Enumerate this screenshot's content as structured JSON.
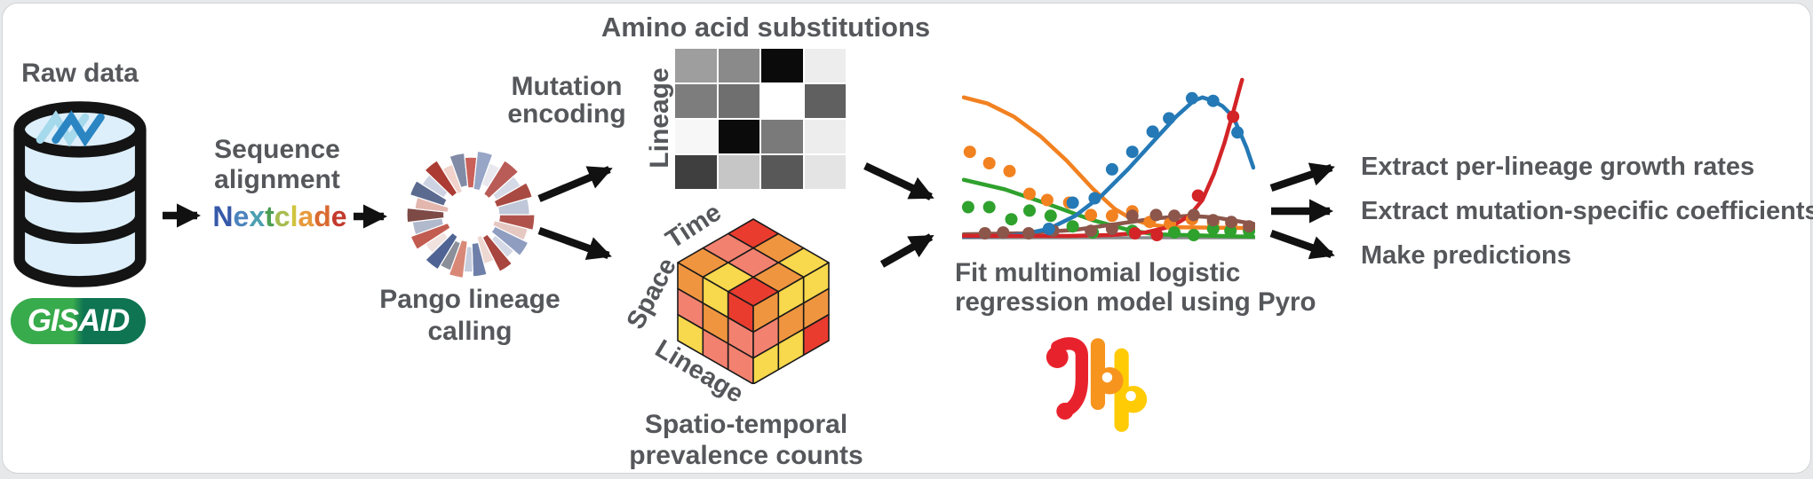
{
  "canvas": {
    "page_bg": "#e7e8e9",
    "card_bg": "#ffffff",
    "card_border": "#d2d3d5",
    "text_color": "#55575b",
    "arrow_color": "#111111"
  },
  "nodes": {
    "raw_data": {
      "label": "Raw data",
      "database_fill": "#ddeffb",
      "database_stroke": "#141414",
      "dna_colors": [
        "#a5d9ec",
        "#2b85c2"
      ],
      "gisaid": {
        "text": "GISAID",
        "gradient_left": "#38ab4c",
        "gradient_right": "#0e7452"
      }
    },
    "sequence_alignment": {
      "line1": "Sequence",
      "line2": "alignment",
      "tool_letters": [
        [
          "N",
          "#3659A8"
        ],
        [
          "e",
          "#4C83BC"
        ],
        [
          "x",
          "#4D9FB0"
        ],
        [
          "t",
          "#4C9E52"
        ],
        [
          "c",
          "#A6BC4F"
        ],
        [
          "l",
          "#D1C43F"
        ],
        [
          "a",
          "#E79A3C"
        ],
        [
          "d",
          "#D96A30"
        ],
        [
          "e",
          "#C23A2C"
        ]
      ]
    },
    "pango": {
      "line1": "Pango lineage",
      "line2": "calling",
      "wedges": [
        [
          0,
          14,
          0.45,
          1,
          "#b0524c"
        ],
        [
          14,
          26,
          0.38,
          0.92,
          "#e6c8c2"
        ],
        [
          26,
          40,
          0.42,
          1,
          "#8e9dc0"
        ],
        [
          40,
          50,
          0.5,
          0.88,
          "#d5d9e6"
        ],
        [
          50,
          63,
          0.4,
          1,
          "#a8453e"
        ],
        [
          63,
          75,
          0.36,
          0.8,
          "#eed8d2"
        ],
        [
          75,
          88,
          0.45,
          0.97,
          "#6e80a9"
        ],
        [
          88,
          97,
          0.5,
          0.9,
          "#c6cddd"
        ],
        [
          97,
          110,
          0.42,
          1,
          "#d98877"
        ],
        [
          110,
          121,
          0.47,
          0.93,
          "#8a8f99"
        ],
        [
          121,
          135,
          0.4,
          1,
          "#4f6494"
        ],
        [
          135,
          147,
          0.5,
          0.85,
          "#efe2df"
        ],
        [
          147,
          160,
          0.38,
          1,
          "#c25c51"
        ],
        [
          160,
          173,
          0.45,
          0.92,
          "#b1b9cc"
        ],
        [
          173,
          186,
          0.42,
          1,
          "#7d4a46"
        ],
        [
          186,
          198,
          0.36,
          0.88,
          "#e3b7ae"
        ],
        [
          198,
          212,
          0.44,
          1,
          "#5b6b90"
        ],
        [
          212,
          224,
          0.5,
          0.9,
          "#cdd3e2"
        ],
        [
          224,
          238,
          0.4,
          1,
          "#ab3b33"
        ],
        [
          238,
          250,
          0.38,
          0.84,
          "#f1d3cc"
        ],
        [
          250,
          264,
          0.45,
          0.97,
          "#828ba6"
        ],
        [
          264,
          276,
          0.42,
          0.9,
          "#c9615a"
        ],
        [
          276,
          290,
          0.4,
          1,
          "#97a5c6"
        ],
        [
          290,
          302,
          0.5,
          0.86,
          "#e8e8ee"
        ],
        [
          302,
          318,
          0.38,
          1,
          "#b95b56"
        ],
        [
          318,
          330,
          0.46,
          0.9,
          "#d6dae6"
        ],
        [
          330,
          344,
          0.42,
          1,
          "#a94a42"
        ],
        [
          344,
          360,
          0.44,
          0.92,
          "#bfc7d8"
        ]
      ]
    },
    "mutation_encoding": {
      "line1": "Mutation",
      "line2": "encoding"
    },
    "amino_matrix": {
      "title": "Amino acid substitutions",
      "axis_label": "Lineage",
      "cells": [
        [
          "#9e9e9e",
          "#8a8a8a",
          "#0b0b0b",
          "#ededed"
        ],
        [
          "#7d7d7d",
          "#6f6f6f",
          "#ffffff",
          "#606060"
        ],
        [
          "#f7f7f7",
          "#0b0b0b",
          "#7a7a7a",
          "#ededed"
        ],
        [
          "#3f3f3f",
          "#c6c6c6",
          "#585858",
          "#e4e4e4"
        ]
      ]
    },
    "cube": {
      "caption1": "Spatio-temporal",
      "caption2": "prevalence counts",
      "axis_time": "Time",
      "axis_space": "Space",
      "axis_lineage": "Lineage",
      "palette": {
        "Y": "#F8D84C",
        "O": "#F0953F",
        "S": "#F3816F",
        "R": "#E93C2F"
      },
      "faces": {
        "top": [
          [
            "R",
            "O",
            "Y"
          ],
          [
            "S",
            "S",
            "O"
          ],
          [
            "O",
            "Y",
            "R"
          ]
        ],
        "left": [
          [
            "O",
            "Y",
            "R"
          ],
          [
            "S",
            "O",
            "S"
          ],
          [
            "Y",
            "S",
            "S"
          ]
        ],
        "right": [
          [
            "O",
            "Y",
            "Y"
          ],
          [
            "S",
            "O",
            "O"
          ],
          [
            "Y",
            "Y",
            "R"
          ]
        ]
      }
    },
    "model": {
      "line1": "Fit multinomial logistic",
      "line2": "regression model using Pyro",
      "logo_colors": {
        "red": "#E8222D",
        "orange": "#F7941D",
        "yellow": "#FFCB05"
      }
    },
    "outputs": {
      "items": [
        "Extract per-lineage growth rates",
        "Extract mutation-specific coefficients",
        "Make predictions"
      ]
    }
  },
  "chart_data": {
    "type": "line",
    "title": "",
    "xlabel": "",
    "ylabel": "",
    "description": "Schematic: observed lineage proportions over time (dots) with fitted multinomial logistic regression curves (lines), one colored series per lineage.",
    "axis_line_color": "#8a8a8a",
    "x_range": [
      0,
      1
    ],
    "y_range": [
      0,
      1
    ],
    "series": [
      {
        "name": "lineage-orange",
        "color": "#F28120",
        "line": [
          [
            0,
            0.889
          ],
          [
            0.082,
            0.85
          ],
          [
            0.173,
            0.767
          ],
          [
            0.264,
            0.644
          ],
          [
            0.355,
            0.489
          ],
          [
            0.445,
            0.311
          ],
          [
            0.521,
            0.183
          ],
          [
            0.582,
            0.117
          ],
          [
            0.642,
            0.083
          ],
          [
            0.718,
            0.067
          ],
          [
            1,
            0.061
          ]
        ],
        "dots": [
          [
            0.021,
            0.544
          ],
          [
            0.088,
            0.472
          ],
          [
            0.158,
            0.422
          ],
          [
            0.227,
            0.278
          ],
          [
            0.288,
            0.239
          ],
          [
            0.364,
            0.222
          ],
          [
            0.439,
            0.144
          ],
          [
            0.512,
            0.139
          ],
          [
            0.582,
            0.167
          ],
          [
            0.642,
            0.1
          ],
          [
            0.712,
            0.089
          ],
          [
            0.788,
            0.117
          ],
          [
            0.861,
            0.094
          ],
          [
            0.924,
            0.089
          ]
        ]
      },
      {
        "name": "lineage-green",
        "color": "#2FA12D",
        "line": [
          [
            0,
            0.367
          ],
          [
            0.142,
            0.306
          ],
          [
            0.294,
            0.211
          ],
          [
            0.445,
            0.111
          ],
          [
            0.567,
            0.05
          ],
          [
            0.658,
            0.022
          ],
          [
            1,
            0.006
          ]
        ],
        "dots": [
          [
            0.015,
            0.194
          ],
          [
            0.088,
            0.194
          ],
          [
            0.164,
            0.117
          ],
          [
            0.227,
            0.172
          ],
          [
            0.3,
            0.139
          ],
          [
            0.376,
            0.072
          ],
          [
            0.445,
            0.033
          ],
          [
            0.582,
            0.044
          ],
          [
            0.727,
            0.033
          ],
          [
            0.794,
            0.017
          ],
          [
            0.861,
            0.056
          ],
          [
            0.921,
            0.044
          ],
          [
            0.985,
            0.044
          ]
        ]
      },
      {
        "name": "lineage-brown",
        "color": "#8C564B",
        "line": [
          [
            0,
            0.022
          ],
          [
            0.203,
            0.028
          ],
          [
            0.385,
            0.05
          ],
          [
            0.536,
            0.089
          ],
          [
            0.658,
            0.122
          ],
          [
            0.779,
            0.139
          ],
          [
            0.87,
            0.128
          ],
          [
            0.961,
            0.1
          ],
          [
            1,
            0.089
          ]
        ],
        "dots": [
          [
            0.073,
            0.028
          ],
          [
            0.136,
            0.033
          ],
          [
            0.224,
            0.028
          ],
          [
            0.309,
            0.044
          ],
          [
            0.439,
            0.044
          ],
          [
            0.512,
            0.056
          ],
          [
            0.582,
            0.139
          ],
          [
            0.664,
            0.144
          ],
          [
            0.727,
            0.139
          ],
          [
            0.794,
            0.144
          ],
          [
            0.861,
            0.111
          ],
          [
            0.924,
            0.1
          ],
          [
            0.985,
            0.072
          ]
        ]
      },
      {
        "name": "lineage-blue",
        "color": "#2479B6",
        "line": [
          [
            0,
            0.006
          ],
          [
            0.15,
            0.011
          ],
          [
            0.203,
            0.022
          ],
          [
            0.294,
            0.056
          ],
          [
            0.385,
            0.139
          ],
          [
            0.476,
            0.267
          ],
          [
            0.567,
            0.433
          ],
          [
            0.658,
            0.617
          ],
          [
            0.733,
            0.767
          ],
          [
            0.794,
            0.867
          ],
          [
            0.824,
            0.889
          ],
          [
            0.861,
            0.867
          ],
          [
            0.894,
            0.833
          ],
          [
            0.93,
            0.767
          ],
          [
            0.976,
            0.572
          ],
          [
            1,
            0.444
          ]
        ],
        "dots": [
          [
            0.294,
            0.056
          ],
          [
            0.376,
            0.222
          ],
          [
            0.452,
            0.25
          ],
          [
            0.512,
            0.433
          ],
          [
            0.582,
            0.544
          ],
          [
            0.652,
            0.672
          ],
          [
            0.709,
            0.756
          ],
          [
            0.788,
            0.883
          ],
          [
            0.861,
            0.867
          ],
          [
            0.945,
            0.667
          ]
        ]
      },
      {
        "name": "lineage-red",
        "color": "#D32427",
        "line": [
          [
            0,
            0.011
          ],
          [
            0.355,
            0.011
          ],
          [
            0.506,
            0.017
          ],
          [
            0.627,
            0.033
          ],
          [
            0.718,
            0.072
          ],
          [
            0.779,
            0.139
          ],
          [
            0.824,
            0.239
          ],
          [
            0.864,
            0.406
          ],
          [
            0.9,
            0.6
          ],
          [
            0.93,
            0.794
          ],
          [
            0.955,
            0.961
          ],
          [
            0.961,
            1
          ]
        ],
        "dots": [
          [
            0.591,
            0.028
          ],
          [
            0.667,
            0.017
          ],
          [
            0.809,
            0.267
          ],
          [
            0.93,
            0.767
          ]
        ]
      }
    ]
  }
}
